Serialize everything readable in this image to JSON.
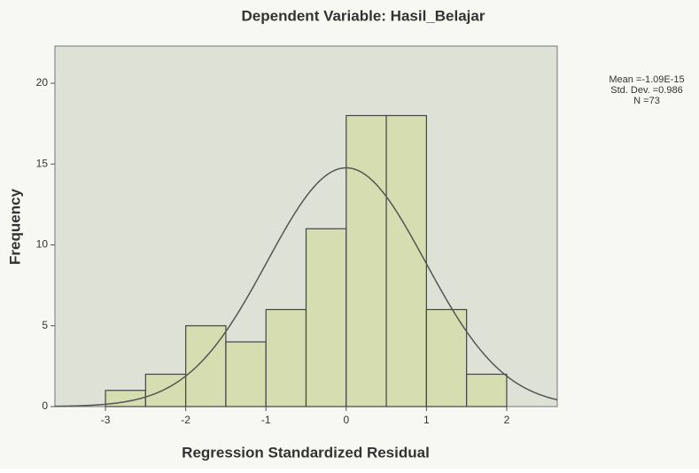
{
  "chart_data": {
    "type": "histogram",
    "title": "Dependent Variable: Hasil_Belajar",
    "xlabel": "Regression Standardized Residual",
    "ylabel": "Frequency",
    "bins": [
      -3,
      -2.5,
      -2,
      -1.5,
      -1,
      -0.5,
      0,
      0.5,
      1,
      1.5,
      2
    ],
    "values": [
      1,
      2,
      5,
      4,
      6,
      11,
      18,
      18,
      6,
      2
    ],
    "color": "#d6ddb0",
    "xlim": [
      -3.63,
      2.63
    ],
    "ylim": [
      0,
      22.3
    ],
    "xticks": [
      -3,
      -2,
      -1,
      0,
      1,
      2
    ],
    "yticks": [
      0,
      5,
      10,
      15,
      20
    ],
    "stats": [
      {
        "value": -1.09e-15,
        "label": "Mean =-1.09E-15"
      },
      {
        "value": 0.986,
        "label": "Std. Dev. =0.986"
      },
      {
        "value": 73,
        "label": "N =73"
      }
    ]
  }
}
